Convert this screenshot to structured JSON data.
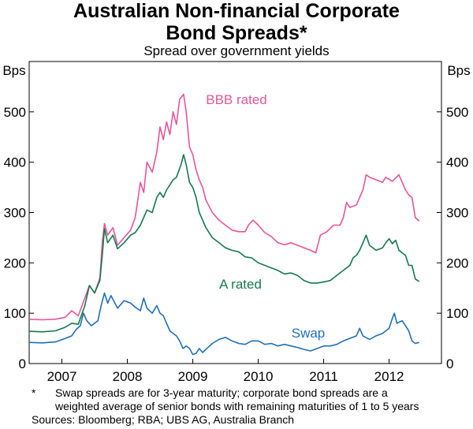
{
  "chart_data": {
    "type": "line",
    "title": "Australian Non-financial Corporate Bond Spreads*",
    "title_lines": [
      "Australian Non-financial Corporate",
      "Bond Spreads*"
    ],
    "subtitle": "Spread over government yields",
    "ylabel_left": "Bps",
    "ylabel_right": "Bps",
    "ylim": [
      0,
      600
    ],
    "yticks": [
      0,
      100,
      200,
      300,
      400,
      500
    ],
    "xlim": [
      2006.5,
      2012.8
    ],
    "xticks": [
      {
        "label": "2007",
        "x": 2007.0
      },
      {
        "label": "2008",
        "x": 2008.0
      },
      {
        "label": "2009",
        "x": 2009.0
      },
      {
        "label": "2010",
        "x": 2010.0
      },
      {
        "label": "2011",
        "x": 2011.0
      },
      {
        "label": "2012",
        "x": 2012.0
      }
    ],
    "grid": false,
    "series": [
      {
        "name": "BBB rated",
        "color": "#e8549b",
        "points": [
          [
            2006.5,
            88
          ],
          [
            2006.7,
            87
          ],
          [
            2006.9,
            88
          ],
          [
            2007.05,
            92
          ],
          [
            2007.15,
            105
          ],
          [
            2007.25,
            95
          ],
          [
            2007.35,
            130
          ],
          [
            2007.42,
            155
          ],
          [
            2007.5,
            140
          ],
          [
            2007.58,
            170
          ],
          [
            2007.62,
            245
          ],
          [
            2007.65,
            278
          ],
          [
            2007.7,
            255
          ],
          [
            2007.78,
            270
          ],
          [
            2007.85,
            235
          ],
          [
            2007.95,
            250
          ],
          [
            2008.05,
            265
          ],
          [
            2008.12,
            290
          ],
          [
            2008.2,
            360
          ],
          [
            2008.25,
            340
          ],
          [
            2008.3,
            400
          ],
          [
            2008.38,
            380
          ],
          [
            2008.45,
            420
          ],
          [
            2008.5,
            470
          ],
          [
            2008.55,
            445
          ],
          [
            2008.6,
            480
          ],
          [
            2008.65,
            455
          ],
          [
            2008.7,
            500
          ],
          [
            2008.75,
            475
          ],
          [
            2008.8,
            525
          ],
          [
            2008.86,
            535
          ],
          [
            2008.9,
            500
          ],
          [
            2008.95,
            430
          ],
          [
            2009.0,
            415
          ],
          [
            2009.05,
            385
          ],
          [
            2009.1,
            365
          ],
          [
            2009.15,
            350
          ],
          [
            2009.2,
            325
          ],
          [
            2009.3,
            300
          ],
          [
            2009.4,
            285
          ],
          [
            2009.5,
            275
          ],
          [
            2009.6,
            265
          ],
          [
            2009.7,
            262
          ],
          [
            2009.8,
            262
          ],
          [
            2009.85,
            275
          ],
          [
            2009.92,
            285
          ],
          [
            2010.0,
            275
          ],
          [
            2010.1,
            260
          ],
          [
            2010.2,
            252
          ],
          [
            2010.3,
            240
          ],
          [
            2010.4,
            236
          ],
          [
            2010.5,
            240
          ],
          [
            2010.6,
            235
          ],
          [
            2010.7,
            230
          ],
          [
            2010.8,
            225
          ],
          [
            2010.88,
            220
          ],
          [
            2010.95,
            255
          ],
          [
            2011.05,
            262
          ],
          [
            2011.15,
            275
          ],
          [
            2011.25,
            275
          ],
          [
            2011.3,
            290
          ],
          [
            2011.35,
            320
          ],
          [
            2011.4,
            310
          ],
          [
            2011.5,
            315
          ],
          [
            2011.6,
            345
          ],
          [
            2011.65,
            375
          ],
          [
            2011.7,
            370
          ],
          [
            2011.8,
            365
          ],
          [
            2011.9,
            360
          ],
          [
            2011.95,
            370
          ],
          [
            2012.05,
            362
          ],
          [
            2012.15,
            375
          ],
          [
            2012.2,
            360
          ],
          [
            2012.25,
            345
          ],
          [
            2012.3,
            335
          ],
          [
            2012.35,
            330
          ],
          [
            2012.4,
            290
          ],
          [
            2012.46,
            283
          ]
        ]
      },
      {
        "name": "A rated",
        "color": "#137a4b",
        "points": [
          [
            2006.5,
            64
          ],
          [
            2006.7,
            63
          ],
          [
            2006.9,
            65
          ],
          [
            2007.05,
            72
          ],
          [
            2007.15,
            80
          ],
          [
            2007.25,
            78
          ],
          [
            2007.35,
            115
          ],
          [
            2007.42,
            155
          ],
          [
            2007.5,
            140
          ],
          [
            2007.58,
            165
          ],
          [
            2007.62,
            220
          ],
          [
            2007.65,
            268
          ],
          [
            2007.7,
            240
          ],
          [
            2007.78,
            255
          ],
          [
            2007.85,
            228
          ],
          [
            2007.95,
            240
          ],
          [
            2008.05,
            255
          ],
          [
            2008.12,
            260
          ],
          [
            2008.2,
            275
          ],
          [
            2008.3,
            305
          ],
          [
            2008.38,
            300
          ],
          [
            2008.45,
            330
          ],
          [
            2008.5,
            340
          ],
          [
            2008.55,
            330
          ],
          [
            2008.6,
            345
          ],
          [
            2008.65,
            355
          ],
          [
            2008.7,
            365
          ],
          [
            2008.75,
            370
          ],
          [
            2008.82,
            395
          ],
          [
            2008.86,
            415
          ],
          [
            2008.9,
            395
          ],
          [
            2008.95,
            360
          ],
          [
            2009.0,
            350
          ],
          [
            2009.05,
            330
          ],
          [
            2009.1,
            300
          ],
          [
            2009.15,
            285
          ],
          [
            2009.2,
            270
          ],
          [
            2009.3,
            250
          ],
          [
            2009.4,
            240
          ],
          [
            2009.5,
            230
          ],
          [
            2009.6,
            225
          ],
          [
            2009.7,
            222
          ],
          [
            2009.8,
            212
          ],
          [
            2009.9,
            210
          ],
          [
            2009.95,
            205
          ],
          [
            2010.0,
            200
          ],
          [
            2010.1,
            195
          ],
          [
            2010.2,
            190
          ],
          [
            2010.3,
            185
          ],
          [
            2010.4,
            178
          ],
          [
            2010.5,
            180
          ],
          [
            2010.6,
            175
          ],
          [
            2010.7,
            165
          ],
          [
            2010.8,
            160
          ],
          [
            2010.9,
            160
          ],
          [
            2011.0,
            162
          ],
          [
            2011.1,
            165
          ],
          [
            2011.2,
            175
          ],
          [
            2011.3,
            185
          ],
          [
            2011.4,
            195
          ],
          [
            2011.45,
            210
          ],
          [
            2011.5,
            215
          ],
          [
            2011.55,
            225
          ],
          [
            2011.6,
            240
          ],
          [
            2011.65,
            255
          ],
          [
            2011.7,
            235
          ],
          [
            2011.8,
            225
          ],
          [
            2011.9,
            230
          ],
          [
            2011.95,
            240
          ],
          [
            2012.0,
            248
          ],
          [
            2012.05,
            238
          ],
          [
            2012.1,
            245
          ],
          [
            2012.15,
            225
          ],
          [
            2012.2,
            220
          ],
          [
            2012.25,
            215
          ],
          [
            2012.3,
            195
          ],
          [
            2012.35,
            195
          ],
          [
            2012.4,
            168
          ],
          [
            2012.46,
            163
          ]
        ]
      },
      {
        "name": "Swap",
        "color": "#1f6fba",
        "points": [
          [
            2006.5,
            42
          ],
          [
            2006.7,
            41
          ],
          [
            2006.9,
            43
          ],
          [
            2007.05,
            50
          ],
          [
            2007.15,
            55
          ],
          [
            2007.22,
            68
          ],
          [
            2007.28,
            75
          ],
          [
            2007.33,
            100
          ],
          [
            2007.38,
            85
          ],
          [
            2007.45,
            75
          ],
          [
            2007.5,
            80
          ],
          [
            2007.55,
            85
          ],
          [
            2007.6,
            115
          ],
          [
            2007.65,
            140
          ],
          [
            2007.7,
            120
          ],
          [
            2007.75,
            135
          ],
          [
            2007.85,
            110
          ],
          [
            2007.95,
            125
          ],
          [
            2008.05,
            120
          ],
          [
            2008.12,
            112
          ],
          [
            2008.2,
            105
          ],
          [
            2008.25,
            130
          ],
          [
            2008.3,
            110
          ],
          [
            2008.38,
            100
          ],
          [
            2008.45,
            115
          ],
          [
            2008.5,
            100
          ],
          [
            2008.55,
            95
          ],
          [
            2008.6,
            80
          ],
          [
            2008.65,
            65
          ],
          [
            2008.7,
            60
          ],
          [
            2008.75,
            55
          ],
          [
            2008.8,
            45
          ],
          [
            2008.85,
            30
          ],
          [
            2008.9,
            35
          ],
          [
            2008.95,
            30
          ],
          [
            2009.0,
            18
          ],
          [
            2009.05,
            20
          ],
          [
            2009.1,
            30
          ],
          [
            2009.15,
            22
          ],
          [
            2009.2,
            28
          ],
          [
            2009.3,
            40
          ],
          [
            2009.4,
            48
          ],
          [
            2009.5,
            52
          ],
          [
            2009.6,
            45
          ],
          [
            2009.7,
            40
          ],
          [
            2009.8,
            38
          ],
          [
            2009.9,
            45
          ],
          [
            2010.0,
            45
          ],
          [
            2010.1,
            38
          ],
          [
            2010.2,
            40
          ],
          [
            2010.3,
            35
          ],
          [
            2010.4,
            38
          ],
          [
            2010.5,
            35
          ],
          [
            2010.6,
            32
          ],
          [
            2010.7,
            28
          ],
          [
            2010.8,
            25
          ],
          [
            2010.9,
            30
          ],
          [
            2011.0,
            35
          ],
          [
            2011.1,
            35
          ],
          [
            2011.2,
            38
          ],
          [
            2011.3,
            45
          ],
          [
            2011.4,
            50
          ],
          [
            2011.5,
            55
          ],
          [
            2011.55,
            70
          ],
          [
            2011.6,
            55
          ],
          [
            2011.7,
            48
          ],
          [
            2011.8,
            55
          ],
          [
            2011.9,
            60
          ],
          [
            2012.0,
            70
          ],
          [
            2012.05,
            90
          ],
          [
            2012.08,
            100
          ],
          [
            2012.12,
            80
          ],
          [
            2012.2,
            85
          ],
          [
            2012.25,
            75
          ],
          [
            2012.3,
            65
          ],
          [
            2012.35,
            45
          ],
          [
            2012.4,
            40
          ],
          [
            2012.46,
            42
          ]
        ]
      }
    ],
    "annotations": [
      {
        "text": "BBB rated",
        "series": "BBB rated"
      },
      {
        "text": "A rated",
        "series": "A rated"
      },
      {
        "text": "Swap",
        "series": "Swap"
      }
    ]
  },
  "notes": {
    "footnote_marker": "*",
    "footnote_line1": "Swap spreads are for 3-year maturity; corporate bond spreads are a",
    "footnote_line2": "weighted average of senior bonds with remaining maturities of 1 to 5 years",
    "sources": "Sources: Bloomberg; RBA; UBS AG, Australia Branch"
  }
}
